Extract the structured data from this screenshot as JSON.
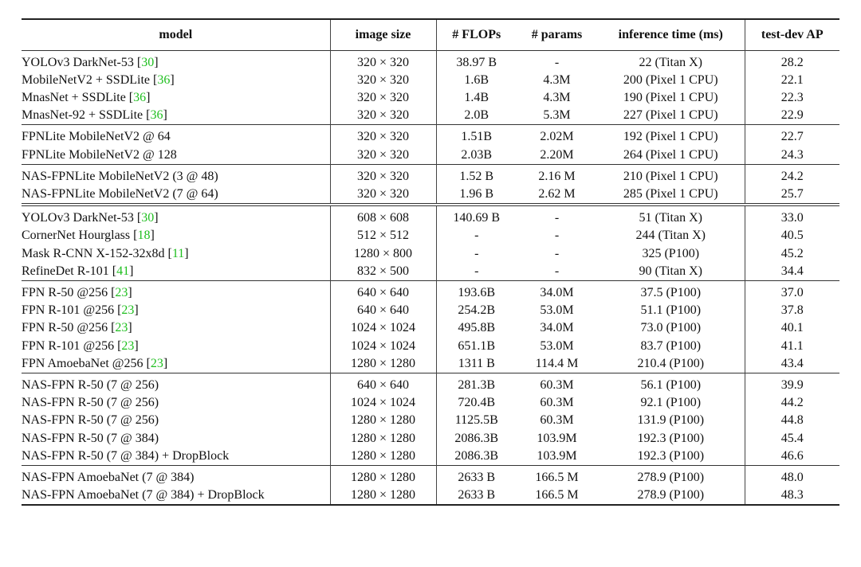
{
  "headers": {
    "model": "model",
    "image_size": "image size",
    "flops": "# FLOPs",
    "params": "# params",
    "inference": "inference time (ms)",
    "ap": "test-dev AP"
  },
  "groups": [
    {
      "rows": [
        {
          "model": "YOLOv3 DarkNet-53",
          "cite": "30",
          "suffix": "",
          "size": "320 × 320",
          "flops": "38.97 B",
          "params": "-",
          "time": "22 (Titan X)",
          "ap": "28.2"
        },
        {
          "model": "MobileNetV2 + SSDLite",
          "cite": "36",
          "suffix": "",
          "size": "320 × 320",
          "flops": "1.6B",
          "params": "4.3M",
          "time": "200 (Pixel 1 CPU)",
          "ap": "22.1"
        },
        {
          "model": "MnasNet + SSDLite",
          "cite": "36",
          "suffix": "",
          "size": "320 × 320",
          "flops": "1.4B",
          "params": "4.3M",
          "time": "190 (Pixel 1 CPU)",
          "ap": "22.3"
        },
        {
          "model": "MnasNet-92 + SSDLite",
          "cite": "36",
          "suffix": "",
          "size": "320 × 320",
          "flops": "2.0B",
          "params": "5.3M",
          "time": "227 (Pixel 1 CPU)",
          "ap": "22.9"
        }
      ]
    },
    {
      "rows": [
        {
          "model": "FPNLite MobileNetV2  @ 64",
          "cite": "",
          "suffix": "",
          "size": "320 × 320",
          "flops": "1.51B",
          "params": "2.02M",
          "time": "192 (Pixel 1 CPU)",
          "ap": "22.7"
        },
        {
          "model": "FPNLite MobileNetV2  @ 128",
          "cite": "",
          "suffix": "",
          "size": "320 × 320",
          "flops": "2.03B",
          "params": "2.20M",
          "time": "264 (Pixel 1 CPU)",
          "ap": "24.3"
        }
      ]
    },
    {
      "rows": [
        {
          "model": "NAS-FPNLite MobileNetV2 (3 @ 48)",
          "cite": "",
          "suffix": "",
          "size": "320 × 320",
          "flops": "1.52 B",
          "params": "2.16 M",
          "time": "210 (Pixel 1 CPU)",
          "ap": "24.2"
        },
        {
          "model": "NAS-FPNLite MobileNetV2 (7 @ 64)",
          "cite": "",
          "suffix": "",
          "size": "320 × 320",
          "flops": "1.96 B",
          "params": "2.62 M",
          "time": "285 (Pixel 1 CPU)",
          "ap": "25.7"
        }
      ]
    },
    {
      "double": true,
      "rows": [
        {
          "model": "YOLOv3 DarkNet-53",
          "cite": "30",
          "suffix": "",
          "size": "608 × 608",
          "flops": "140.69 B",
          "params": "-",
          "time": "51 (Titan X)",
          "ap": "33.0"
        },
        {
          "model": "CornerNet Hourglass",
          "cite": "18",
          "suffix": "",
          "size": "512 × 512",
          "flops": "-",
          "params": "-",
          "time": "244 (Titan X)",
          "ap": "40.5"
        },
        {
          "model": "Mask R-CNN X-152-32x8d",
          "cite": "11",
          "suffix": "",
          "size": "1280 × 800",
          "flops": "-",
          "params": "-",
          "time": "325 (P100)",
          "ap": "45.2"
        },
        {
          "model": "RefineDet R-101",
          "cite": "41",
          "suffix": "",
          "size": "832 × 500",
          "flops": "-",
          "params": "-",
          "time": "90 (Titan X)",
          "ap": "34.4"
        }
      ]
    },
    {
      "rows": [
        {
          "model": "FPN R-50 @256",
          "cite": "23",
          "suffix": "",
          "size": "640 × 640",
          "flops": "193.6B",
          "params": "34.0M",
          "time": "37.5 (P100)",
          "ap": "37.0"
        },
        {
          "model": "FPN R-101 @256",
          "cite": "23",
          "suffix": "",
          "size": "640 × 640",
          "flops": "254.2B",
          "params": "53.0M",
          "time": "51.1 (P100)",
          "ap": "37.8"
        },
        {
          "model": "FPN R-50 @256",
          "cite": "23",
          "suffix": "",
          "size": "1024 × 1024",
          "flops": "495.8B",
          "params": "34.0M",
          "time": "73.0 (P100)",
          "ap": "40.1"
        },
        {
          "model": "FPN R-101 @256",
          "cite": "23",
          "suffix": "",
          "size": "1024 × 1024",
          "flops": "651.1B",
          "params": "53.0M",
          "time": "83.7 (P100)",
          "ap": "41.1"
        },
        {
          "model": "FPN AmoebaNet @256",
          "cite": "23",
          "suffix": "",
          "size": "1280 × 1280",
          "flops": "1311 B",
          "params": "114.4 M",
          "time": "210.4 (P100)",
          "ap": "43.4"
        }
      ]
    },
    {
      "rows": [
        {
          "model": "NAS-FPN R-50 (7 @ 256)",
          "cite": "",
          "suffix": "",
          "size": "640 × 640",
          "flops": "281.3B",
          "params": "60.3M",
          "time": "56.1 (P100)",
          "ap": "39.9"
        },
        {
          "model": "NAS-FPN R-50 (7 @ 256)",
          "cite": "",
          "suffix": "",
          "size": "1024 × 1024",
          "flops": "720.4B",
          "params": "60.3M",
          "time": "92.1 (P100)",
          "ap": "44.2"
        },
        {
          "model": "NAS-FPN R-50 (7 @ 256)",
          "cite": "",
          "suffix": "",
          "size": "1280 × 1280",
          "flops": "1125.5B",
          "params": "60.3M",
          "time": "131.9 (P100)",
          "ap": "44.8"
        },
        {
          "model": "NAS-FPN R-50 (7 @ 384)",
          "cite": "",
          "suffix": "",
          "size": "1280 × 1280",
          "flops": "2086.3B",
          "params": "103.9M",
          "time": "192.3 (P100)",
          "ap": "45.4"
        },
        {
          "model": "NAS-FPN R-50 (7 @ 384) + DropBlock",
          "cite": "",
          "suffix": "",
          "size": "1280 × 1280",
          "flops": "2086.3B",
          "params": "103.9M",
          "time": "192.3 (P100)",
          "ap": "46.6"
        }
      ]
    },
    {
      "rows": [
        {
          "model": "NAS-FPN AmoebaNet (7 @ 384)",
          "cite": "",
          "suffix": "",
          "size": "1280 × 1280",
          "flops": "2633 B",
          "params": "166.5 M",
          "time": "278.9 (P100)",
          "ap": "48.0"
        },
        {
          "model": "NAS-FPN AmoebaNet (7 @ 384) + DropBlock",
          "cite": "",
          "suffix": "",
          "size": "1280 × 1280",
          "flops": "2633 B",
          "params": "166.5 M",
          "time": "278.9 (P100)",
          "ap": "48.3"
        }
      ]
    }
  ],
  "colors": {
    "citation": "#1fbf1f"
  }
}
